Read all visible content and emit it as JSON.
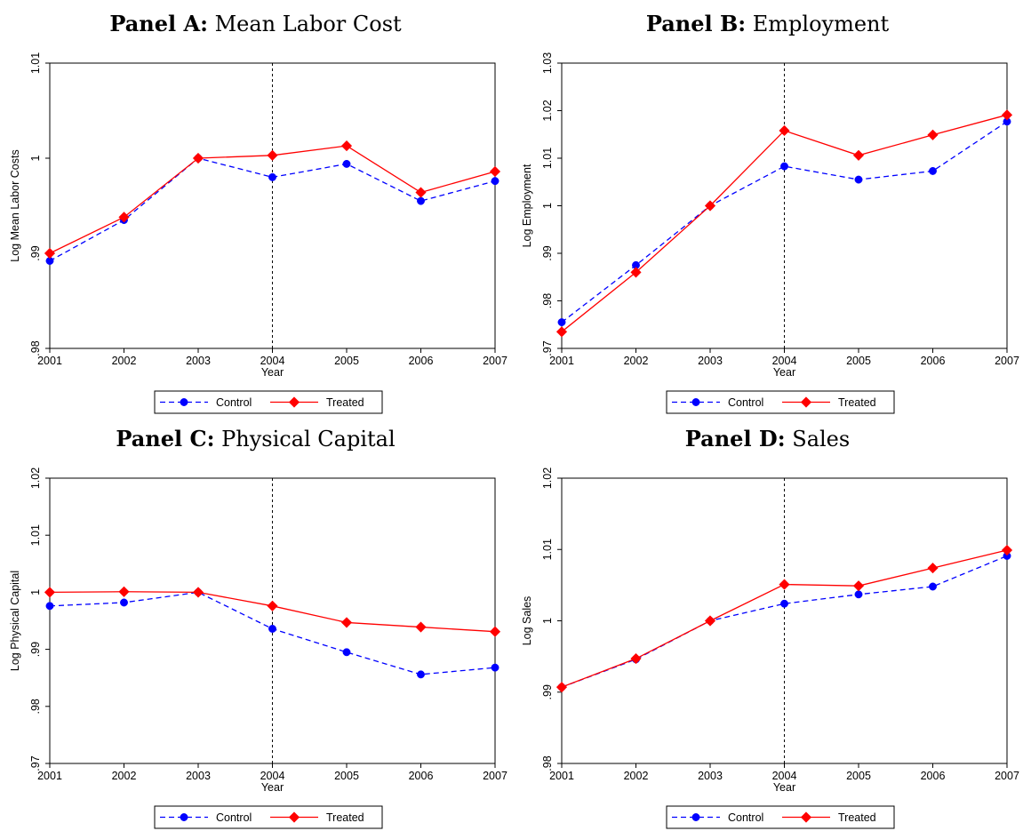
{
  "chart_data": [
    {
      "type": "line",
      "panel_label": "Panel A:",
      "panel_name": "Mean Labor Cost",
      "xlabel": "Year",
      "ylabel": "Log Mean Labor Costs",
      "x": [
        2001,
        2002,
        2003,
        2004,
        2005,
        2006,
        2007
      ],
      "ylim": [
        0.98,
        1.01
      ],
      "yticks": [
        0.98,
        0.99,
        1.0,
        1.01
      ],
      "ytick_labels": [
        ".98",
        ".99",
        "1",
        "1.01"
      ],
      "vline_x": 2004,
      "series": [
        {
          "name": "Control",
          "color": "#0000ff",
          "marker": "circle",
          "dash": true,
          "values": [
            0.9892,
            0.9935,
            1.0,
            0.998,
            0.9994,
            0.9955,
            0.9976
          ]
        },
        {
          "name": "Treated",
          "color": "#ff0000",
          "marker": "diamond",
          "dash": false,
          "values": [
            0.99,
            0.9938,
            1.0,
            1.0003,
            1.0013,
            0.9964,
            0.9986
          ]
        }
      ],
      "legend_position": "bottom"
    },
    {
      "type": "line",
      "panel_label": "Panel B:",
      "panel_name": "Employment",
      "xlabel": "Year",
      "ylabel": "Log Employment",
      "x": [
        2001,
        2002,
        2003,
        2004,
        2005,
        2006,
        2007
      ],
      "ylim": [
        0.97,
        1.03
      ],
      "yticks": [
        0.97,
        0.98,
        0.99,
        1.0,
        1.01,
        1.02,
        1.03
      ],
      "ytick_labels": [
        ".97",
        ".98",
        ".99",
        "1",
        "1.01",
        "1.02",
        "1.03"
      ],
      "vline_x": 2004,
      "series": [
        {
          "name": "Control",
          "color": "#0000ff",
          "marker": "circle",
          "dash": true,
          "values": [
            0.9755,
            0.9875,
            1.0,
            1.0083,
            1.0055,
            1.0073,
            1.0177
          ]
        },
        {
          "name": "Treated",
          "color": "#ff0000",
          "marker": "diamond",
          "dash": false,
          "values": [
            0.9735,
            0.986,
            1.0,
            1.0158,
            1.0106,
            1.0149,
            1.0191
          ]
        }
      ],
      "legend_position": "bottom"
    },
    {
      "type": "line",
      "panel_label": "Panel C:",
      "panel_name": "Physical Capital",
      "xlabel": "Year",
      "ylabel": "Log Physical Capital",
      "x": [
        2001,
        2002,
        2003,
        2004,
        2005,
        2006,
        2007
      ],
      "ylim": [
        0.97,
        1.02
      ],
      "yticks": [
        0.97,
        0.98,
        0.99,
        1.0,
        1.01,
        1.02
      ],
      "ytick_labels": [
        ".97",
        ".98",
        ".99",
        "1",
        "1.01",
        "1.02"
      ],
      "vline_x": 2004,
      "series": [
        {
          "name": "Control",
          "color": "#0000ff",
          "marker": "circle",
          "dash": true,
          "values": [
            0.9976,
            0.9982,
            1.0,
            0.9936,
            0.9895,
            0.9856,
            0.9868
          ]
        },
        {
          "name": "Treated",
          "color": "#ff0000",
          "marker": "diamond",
          "dash": false,
          "values": [
            1.0,
            1.0001,
            1.0,
            0.9976,
            0.9947,
            0.9939,
            0.9931
          ]
        }
      ],
      "legend_position": "bottom"
    },
    {
      "type": "line",
      "panel_label": "Panel D:",
      "panel_name": "Sales",
      "xlabel": "Year",
      "ylabel": "Log Sales",
      "x": [
        2001,
        2002,
        2003,
        2004,
        2005,
        2006,
        2007
      ],
      "ylim": [
        0.98,
        1.02
      ],
      "yticks": [
        0.98,
        0.99,
        1.0,
        1.01,
        1.02
      ],
      "ytick_labels": [
        ".98",
        ".99",
        "1",
        "1.01",
        "1.02"
      ],
      "vline_x": 2004,
      "series": [
        {
          "name": "Control",
          "color": "#0000ff",
          "marker": "circle",
          "dash": true,
          "values": [
            0.9907,
            0.9946,
            1.0,
            1.0024,
            1.0037,
            1.0048,
            1.0091
          ]
        },
        {
          "name": "Treated",
          "color": "#ff0000",
          "marker": "diamond",
          "dash": false,
          "values": [
            0.9907,
            0.9947,
            1.0,
            1.0051,
            1.0049,
            1.0074,
            1.0099
          ]
        }
      ],
      "legend_position": "bottom"
    }
  ]
}
